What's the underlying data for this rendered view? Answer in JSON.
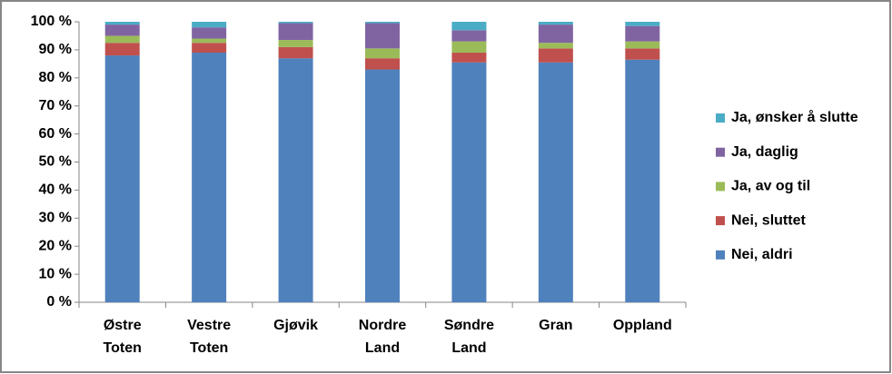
{
  "chart_data": {
    "type": "stacked_bar",
    "categories": [
      "Østre Toten",
      "Vestre Toten",
      "Gjøvik",
      "Nordre Land",
      "Søndre Land",
      "Gran",
      "Oppland"
    ],
    "series": [
      {
        "name": "Nei, aldri",
        "color": "#4f81bd",
        "values": [
          88,
          89,
          87,
          83,
          85.5,
          85.5,
          86.5
        ]
      },
      {
        "name": "Nei, sluttet",
        "color": "#c0504d",
        "values": [
          4.5,
          3.5,
          4,
          4,
          3.5,
          5,
          4
        ]
      },
      {
        "name": "Ja, av og til",
        "color": "#9bbb59",
        "values": [
          2.5,
          1.5,
          2.5,
          3.5,
          4,
          2,
          2.5
        ]
      },
      {
        "name": "Ja, daglig",
        "color": "#8064a2",
        "values": [
          4,
          4,
          6,
          9,
          4,
          6.5,
          5.5
        ]
      },
      {
        "name": "Ja, ønsker å slutte",
        "color": "#4bacc6",
        "values": [
          1,
          2,
          0.5,
          0.5,
          3,
          1,
          1.5
        ]
      }
    ],
    "ylim": [
      0,
      100
    ],
    "yticks": [
      {
        "value": 0,
        "label": "0 %"
      },
      {
        "value": 10,
        "label": "10 %"
      },
      {
        "value": 20,
        "label": "20 %"
      },
      {
        "value": 30,
        "label": "30 %"
      },
      {
        "value": 40,
        "label": "40 %"
      },
      {
        "value": 50,
        "label": "50 %"
      },
      {
        "value": 60,
        "label": "60 %"
      },
      {
        "value": 70,
        "label": "70 %"
      },
      {
        "value": 80,
        "label": "80 %"
      },
      {
        "value": 90,
        "label": "90 %"
      },
      {
        "value": 100,
        "label": "100 %"
      }
    ],
    "legend": "right"
  }
}
